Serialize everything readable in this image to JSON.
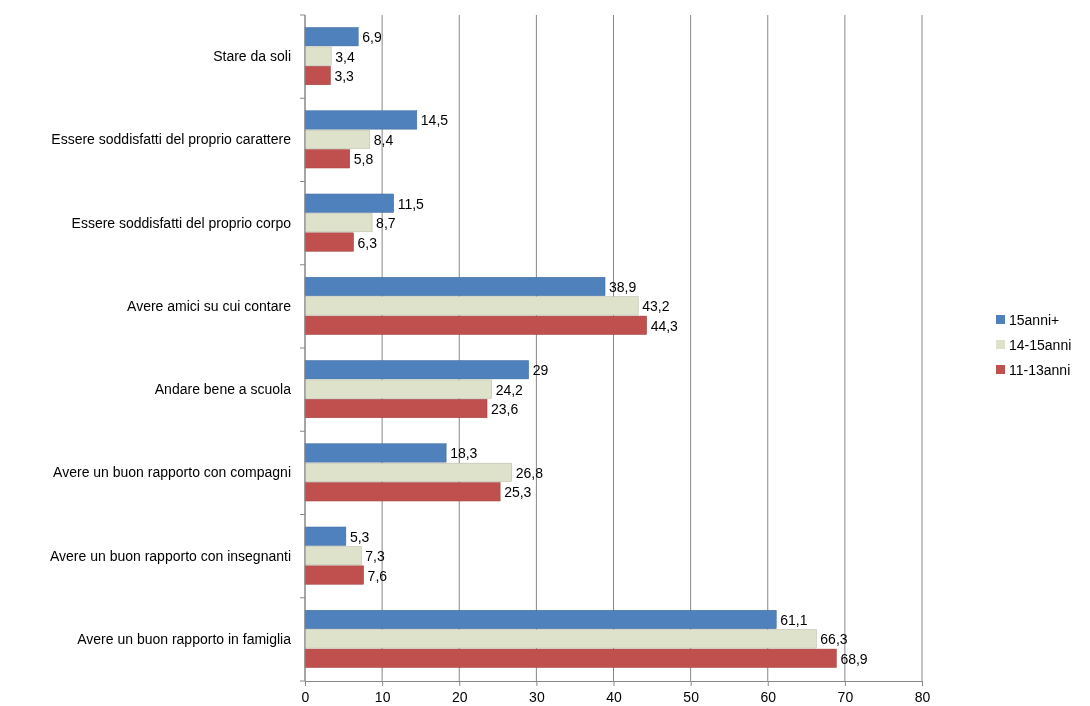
{
  "chart_data": {
    "type": "bar",
    "orientation": "horizontal",
    "categories": [
      "Stare da soli",
      "Essere soddisfatti del proprio carattere",
      "Essere soddisfatti del proprio corpo",
      "Avere amici su cui contare",
      "Andare bene a scuola",
      "Avere un buon rapporto con compagni",
      "Avere un buon rapporto con insegnanti",
      "Avere un buon rapporto in famiglia"
    ],
    "series": [
      {
        "name": "15anni+",
        "color": "#4f81bd",
        "values": [
          6.9,
          14.5,
          11.5,
          38.9,
          29,
          18.3,
          5.3,
          61.1
        ],
        "value_labels": [
          "6,9",
          "14,5",
          "11,5",
          "38,9",
          "29",
          "18,3",
          "5,3",
          "61,1"
        ]
      },
      {
        "name": "14-15anni",
        "color": "#dfe2cb",
        "values": [
          3.4,
          8.4,
          8.7,
          43.2,
          24.2,
          26.8,
          7.3,
          66.3
        ],
        "value_labels": [
          "3,4",
          "8,4",
          "8,7",
          "43,2",
          "24,2",
          "26,8",
          "7,3",
          "66,3"
        ]
      },
      {
        "name": "11-13anni",
        "color": "#c0504d",
        "values": [
          3.3,
          5.8,
          6.3,
          44.3,
          23.6,
          25.3,
          7.6,
          68.9
        ],
        "value_labels": [
          "3,3",
          "5,8",
          "6,3",
          "44,3",
          "23,6",
          "25,3",
          "7,6",
          "68,9"
        ]
      }
    ],
    "xlim": [
      0,
      80
    ],
    "xticks": [
      0,
      10,
      20,
      30,
      40,
      50,
      60,
      70,
      80
    ],
    "grid": "x",
    "legend": "right"
  }
}
